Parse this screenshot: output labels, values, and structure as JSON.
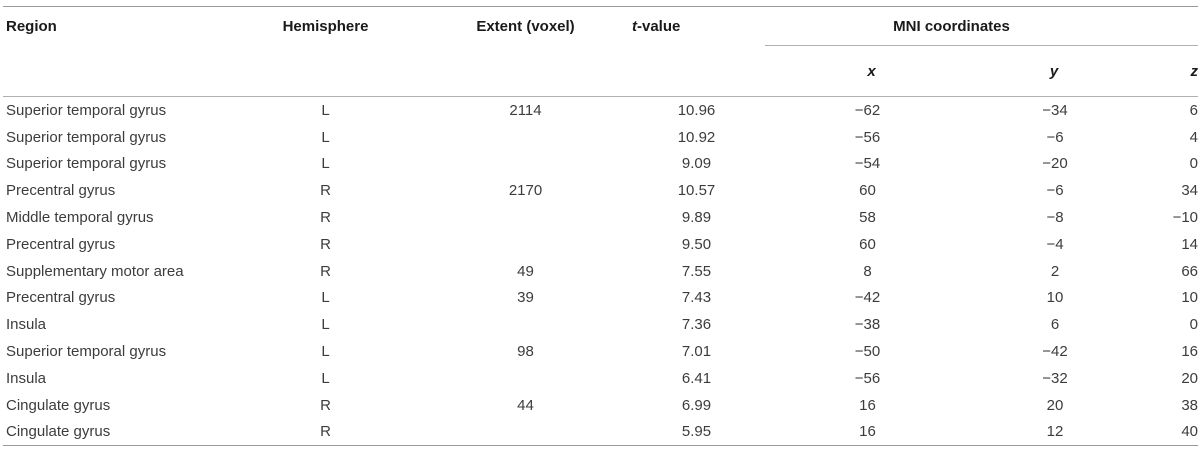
{
  "headers": {
    "region": "Region",
    "hemisphere": "Hemisphere",
    "extent": "Extent (voxel)",
    "t_value_italic": "t",
    "t_value_suffix": "-value",
    "mni": "MNI coordinates",
    "x": "x",
    "y": "y",
    "z": "z"
  },
  "rows": [
    {
      "region": "Superior temporal gyrus",
      "hemisphere": "L",
      "extent": "2114",
      "t": "10.96",
      "x": "−62",
      "y": "−34",
      "z": "6"
    },
    {
      "region": "Superior temporal gyrus",
      "hemisphere": "L",
      "extent": "",
      "t": "10.92",
      "x": "−56",
      "y": "−6",
      "z": "4"
    },
    {
      "region": "Superior temporal gyrus",
      "hemisphere": "L",
      "extent": "",
      "t": "9.09",
      "x": "−54",
      "y": "−20",
      "z": "0"
    },
    {
      "region": "Precentral gyrus",
      "hemisphere": "R",
      "extent": "2170",
      "t": "10.57",
      "x": "60",
      "y": "−6",
      "z": "34"
    },
    {
      "region": "Middle temporal gyrus",
      "hemisphere": "R",
      "extent": "",
      "t": "9.89",
      "x": "58",
      "y": "−8",
      "z": "−10"
    },
    {
      "region": "Precentral gyrus",
      "hemisphere": "R",
      "extent": "",
      "t": "9.50",
      "x": "60",
      "y": "−4",
      "z": "14"
    },
    {
      "region": "Supplementary motor area",
      "hemisphere": "R",
      "extent": "49",
      "t": "7.55",
      "x": "8",
      "y": "2",
      "z": "66"
    },
    {
      "region": "Precentral gyrus",
      "hemisphere": "L",
      "extent": "39",
      "t": "7.43",
      "x": "−42",
      "y": "10",
      "z": "10"
    },
    {
      "region": "Insula",
      "hemisphere": "L",
      "extent": "",
      "t": "7.36",
      "x": "−38",
      "y": "6",
      "z": "0"
    },
    {
      "region": "Superior temporal gyrus",
      "hemisphere": "L",
      "extent": "98",
      "t": "7.01",
      "x": "−50",
      "y": "−42",
      "z": "16"
    },
    {
      "region": "Insula",
      "hemisphere": "L",
      "extent": "",
      "t": "6.41",
      "x": "−56",
      "y": "−32",
      "z": "20"
    },
    {
      "region": "Cingulate gyrus",
      "hemisphere": "R",
      "extent": "44",
      "t": "6.99",
      "x": "16",
      "y": "20",
      "z": "38"
    },
    {
      "region": "Cingulate gyrus",
      "hemisphere": "R",
      "extent": "",
      "t": "5.95",
      "x": "16",
      "y": "12",
      "z": "40"
    }
  ]
}
